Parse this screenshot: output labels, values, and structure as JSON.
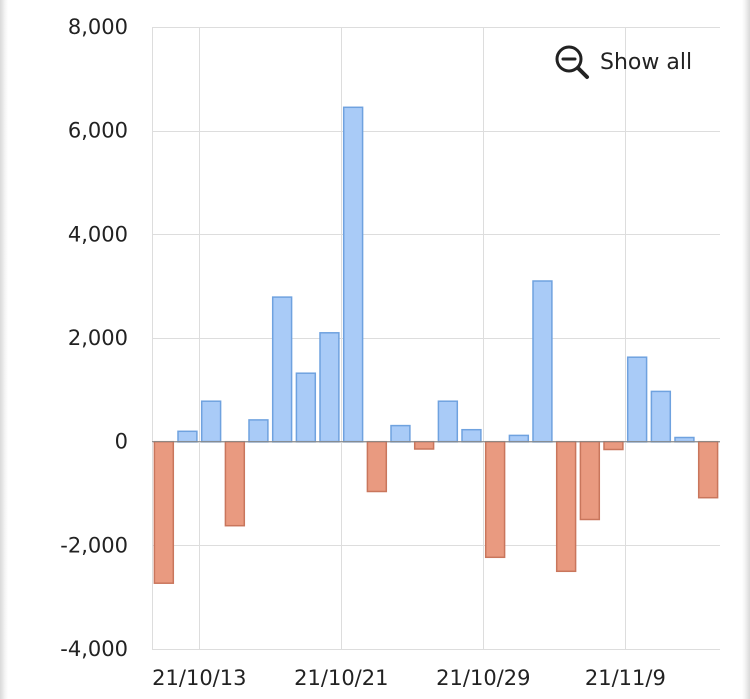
{
  "zoom": {
    "label": "Show all",
    "icon": "zoom-out-icon"
  },
  "colors": {
    "positive": "#a9cbf7",
    "positive_stroke": "#6fa2df",
    "negative": "#e99a80",
    "negative_stroke": "#c9765c",
    "grid": "#dddddd"
  },
  "chart_data": {
    "type": "bar",
    "title": "",
    "xlabel": "",
    "ylabel": "",
    "ylim": [
      -4000,
      8000
    ],
    "yticks": [
      -4000,
      -2000,
      0,
      2000,
      4000,
      6000,
      8000
    ],
    "ytick_labels": [
      "-4,000",
      "-2,000",
      "0",
      "2,000",
      "4,000",
      "6,000",
      "8,000"
    ],
    "xtick_labels": [
      {
        "label": "21/10/13",
        "at_index": 1.5
      },
      {
        "label": "21/10/21",
        "at_index": 7.5
      },
      {
        "label": "21/10/29",
        "at_index": 13.5
      },
      {
        "label": "21/11/9",
        "at_index": 19.5
      }
    ],
    "grid": true,
    "values": [
      -2730,
      200,
      780,
      -1620,
      420,
      2790,
      1320,
      2100,
      6450,
      -960,
      310,
      -140,
      780,
      230,
      -2230,
      120,
      3100,
      -2500,
      -1500,
      -150,
      1630,
      970,
      80,
      -1080
    ]
  }
}
